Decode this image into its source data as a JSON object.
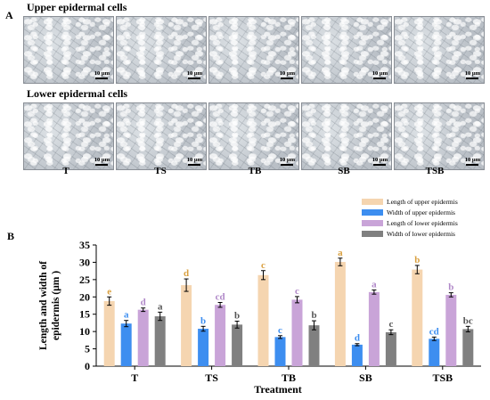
{
  "figure": {
    "panel_a": {
      "letter": "A",
      "upper_title": "Upper epidermal cells",
      "lower_title": "Lower epidermal cells",
      "scale_label": "10 μm",
      "treatments": [
        "T",
        "TS",
        "TB",
        "SB",
        "TSB"
      ]
    },
    "panel_b": {
      "letter": "B"
    }
  },
  "chart_data": {
    "type": "bar",
    "xlabel": "Treatment",
    "ylabel": "Length and width of epidermis (μm )",
    "ylim": [
      0,
      35
    ],
    "yticks": [
      0,
      5,
      10,
      15,
      20,
      25,
      30,
      35
    ],
    "categories": [
      "T",
      "TS",
      "TB",
      "SB",
      "TSB"
    ],
    "legend_position": "top-right",
    "grid": false,
    "series": [
      {
        "name": "Length of upper epidermis",
        "color": "#f5d5b0",
        "letter_color": "#d9a040",
        "values": [
          18.8,
          23.4,
          26.3,
          30.1,
          27.9
        ],
        "errors": [
          1.2,
          1.8,
          1.3,
          1.1,
          1.2
        ],
        "letters": [
          "e",
          "d",
          "c",
          "a",
          "b"
        ]
      },
      {
        "name": "Width of upper epidermis",
        "color": "#3d8ef0",
        "letter_color": "#3d8ef0",
        "values": [
          12.3,
          10.8,
          8.4,
          6.2,
          7.9
        ],
        "errors": [
          0.9,
          0.7,
          0.4,
          0.3,
          0.5
        ],
        "letters": [
          "a",
          "b",
          "c",
          "d",
          "cd"
        ]
      },
      {
        "name": "Length of lower epidermis",
        "color": "#c9a4d8",
        "letter_color": "#b088c8",
        "values": [
          16.3,
          17.7,
          19.2,
          21.4,
          20.6
        ],
        "errors": [
          0.5,
          0.7,
          0.9,
          0.6,
          0.6
        ],
        "letters": [
          "d",
          "cd",
          "c",
          "a",
          "b"
        ]
      },
      {
        "name": "Width of lower epidermis",
        "color": "#808080",
        "letter_color": "#555555",
        "values": [
          14.4,
          12.0,
          11.8,
          9.8,
          10.7
        ],
        "errors": [
          1.2,
          1.0,
          1.3,
          0.7,
          0.8
        ],
        "letters": [
          "a",
          "b",
          "b",
          "c",
          "bc"
        ]
      }
    ]
  }
}
